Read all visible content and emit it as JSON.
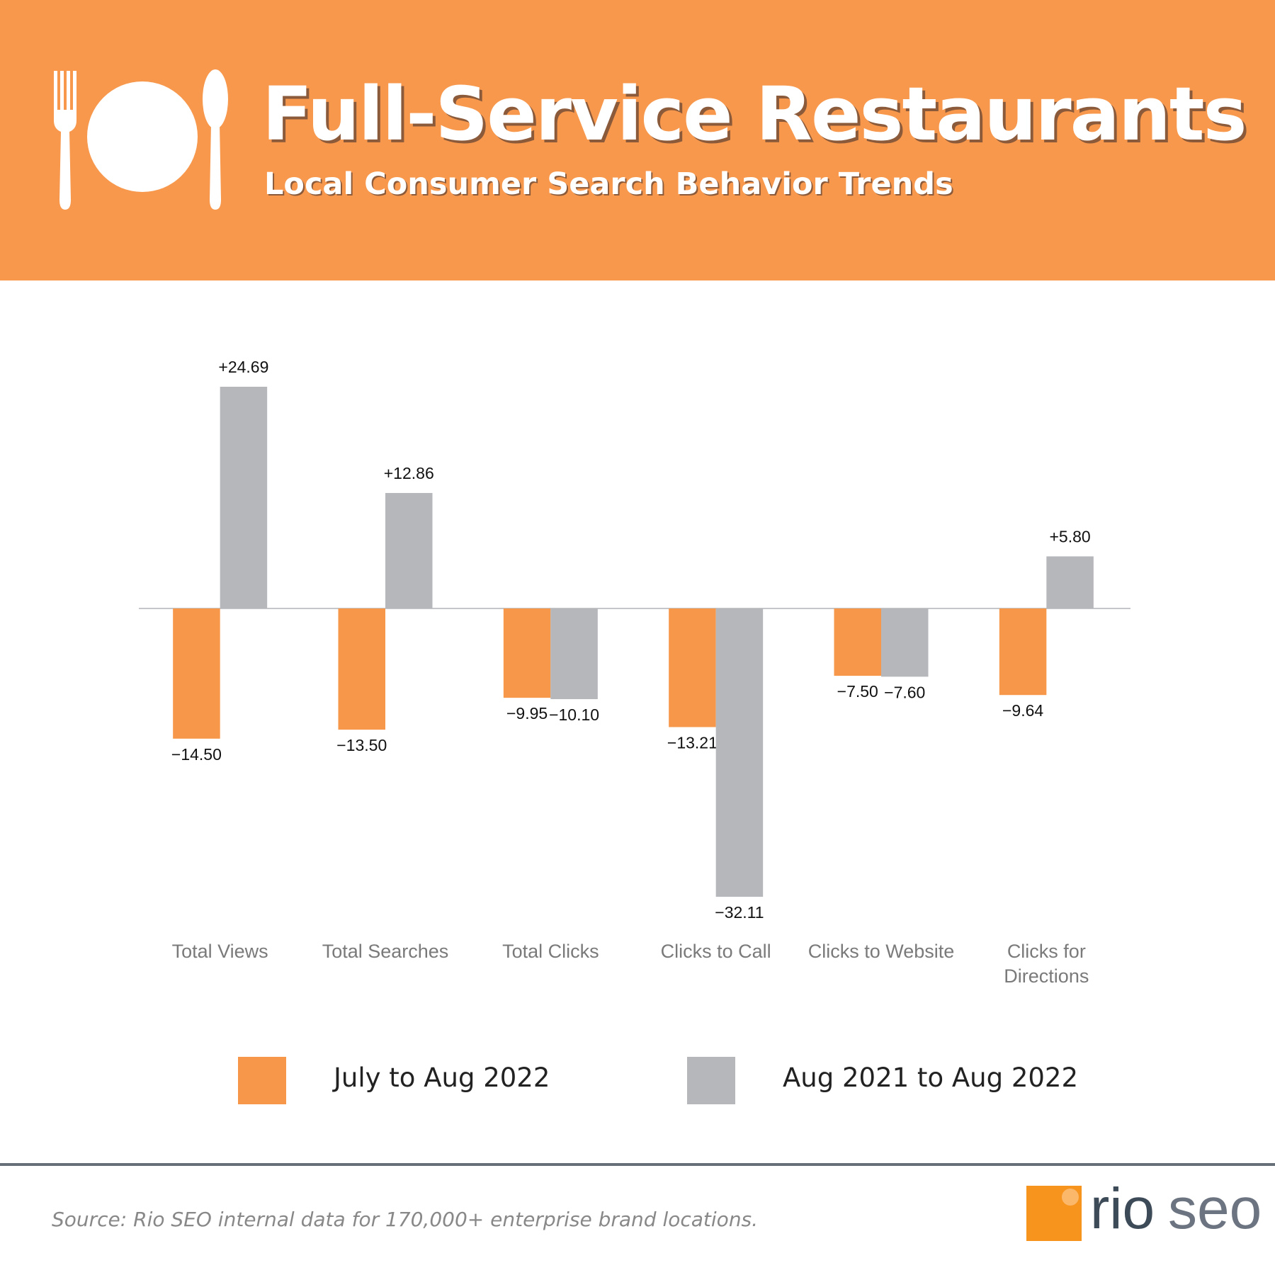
{
  "chart_data": {
    "type": "bar",
    "title": "Full-Service Restaurants",
    "subtitle": "Local Consumer Search Behavior Trends",
    "categories": [
      "Total Views",
      "Total Searches",
      "Total Clicks",
      "Clicks to Call",
      "Clicks to Website",
      "Clicks for Directions"
    ],
    "series": [
      {
        "name": "July to Aug 2022",
        "color": "#f7974a",
        "values": [
          -14.5,
          -13.5,
          -9.95,
          -13.21,
          -7.5,
          -9.64
        ],
        "value_labels": [
          "−14.50",
          "−13.50",
          "−9.95",
          "−13.21",
          "−7.50",
          "−9.64"
        ]
      },
      {
        "name": "Aug 2021 to Aug 2022",
        "color": "#b6b7bb",
        "values": [
          24.69,
          12.86,
          -10.1,
          -32.11,
          -7.6,
          5.8
        ],
        "value_labels": [
          "+24.69",
          "+12.86",
          "−10.10",
          "−32.11",
          "−7.60",
          "+5.80"
        ]
      }
    ]
  },
  "source": "Source: Rio SEO internal data for 170,000+ enterprise brand locations.",
  "logo": [
    "rio",
    "seo"
  ]
}
